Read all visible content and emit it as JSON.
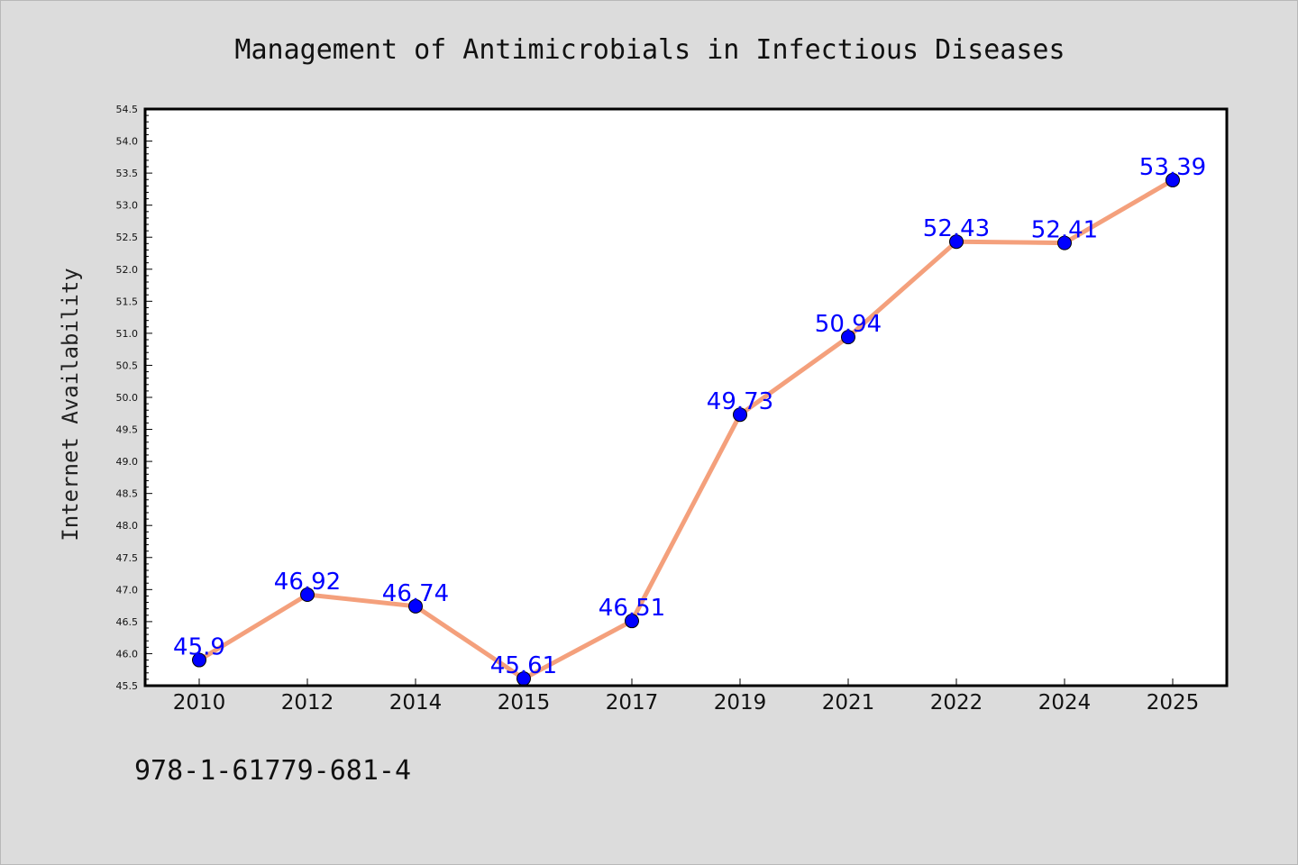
{
  "chart_data": {
    "type": "line",
    "title": "Management of Antimicrobials in Infectious Diseases",
    "xlabel": "",
    "ylabel": "Internet Availability",
    "categories": [
      "2010",
      "2012",
      "2014",
      "2015",
      "2017",
      "2019",
      "2021",
      "2022",
      "2024",
      "2025"
    ],
    "series": [
      {
        "values": [
          45.9,
          46.92,
          46.74,
          45.61,
          46.51,
          49.73,
          50.94,
          52.43,
          52.41,
          53.39
        ],
        "labels": [
          "45.9",
          "46.92",
          "46.74",
          "45.61",
          "46.51",
          "49.73",
          "50.94",
          "52.43",
          "52.41",
          "53.39"
        ],
        "line_color": "#f4a07c",
        "marker_color": "#0000ff"
      }
    ],
    "ylim": [
      45.5,
      54.5
    ],
    "yticks": [
      "45.5",
      "46.0",
      "46.5",
      "47.0",
      "47.5",
      "48.0",
      "48.5",
      "49.0",
      "49.5",
      "50.0",
      "50.5",
      "51.0",
      "51.5",
      "52.0",
      "52.5",
      "53.0",
      "53.5",
      "54.0",
      "54.5"
    ],
    "grid": false,
    "legend": "none"
  },
  "footer_text": "978-1-61779-681-4"
}
